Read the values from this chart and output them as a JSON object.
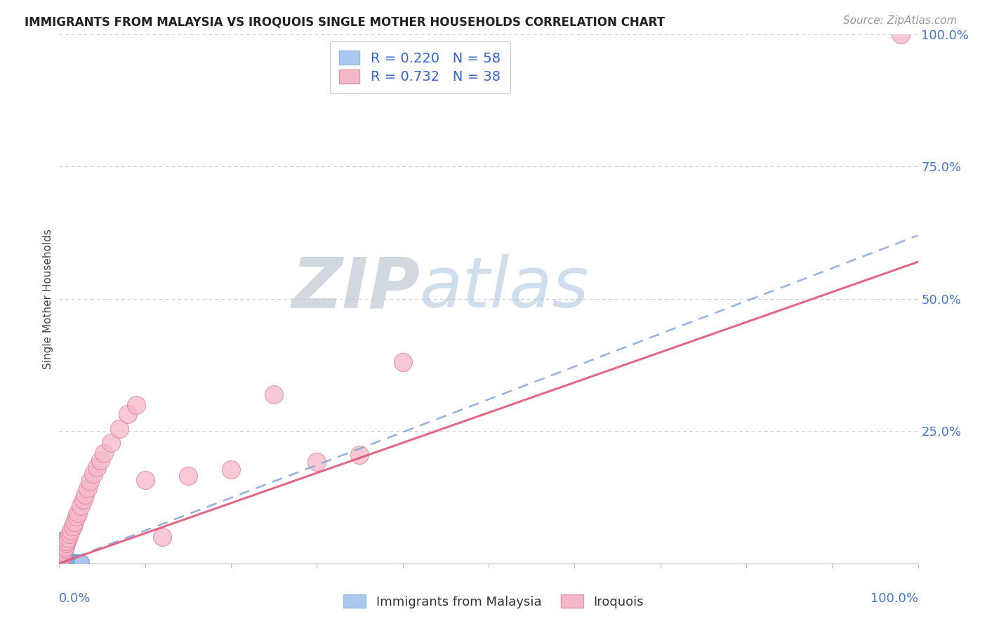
{
  "title": "IMMIGRANTS FROM MALAYSIA VS IROQUOIS SINGLE MOTHER HOUSEHOLDS CORRELATION CHART",
  "source": "Source: ZipAtlas.com",
  "ylabel": "Single Mother Households",
  "xlim": [
    0,
    1.0
  ],
  "ylim": [
    0,
    1.0
  ],
  "yticks": [
    0.25,
    0.5,
    0.75,
    1.0
  ],
  "ytick_labels": [
    "25.0%",
    "50.0%",
    "75.0%",
    "100.0%"
  ],
  "legend1_label": "R = 0.220   N = 58",
  "legend2_label": "R = 0.732   N = 38",
  "series1_color": "#a8c8f0",
  "series1_edge": "#6699cc",
  "series2_color": "#f5b8c8",
  "series2_edge": "#e08098",
  "line1_color": "#88aadd",
  "line2_color": "#e05878",
  "watermark_zip": "ZIP",
  "watermark_atlas": "atlas",
  "watermark_color_zip": "#c8d0dc",
  "watermark_color_atlas": "#b8cce0",
  "title_fontsize": 12,
  "source_fontsize": 11,
  "tick_label_color": "#4477cc",
  "legend_r_color": "#3366cc",
  "background_color": "#ffffff",
  "malaysia_x": [
    0.001,
    0.001,
    0.001,
    0.001,
    0.001,
    0.002,
    0.002,
    0.002,
    0.002,
    0.002,
    0.002,
    0.002,
    0.002,
    0.003,
    0.003,
    0.003,
    0.003,
    0.003,
    0.003,
    0.003,
    0.003,
    0.004,
    0.004,
    0.004,
    0.004,
    0.004,
    0.004,
    0.005,
    0.005,
    0.005,
    0.005,
    0.006,
    0.006,
    0.006,
    0.007,
    0.007,
    0.008,
    0.008,
    0.009,
    0.01,
    0.01,
    0.011,
    0.012,
    0.013,
    0.014,
    0.015,
    0.015,
    0.016,
    0.017,
    0.018,
    0.019,
    0.02,
    0.021,
    0.022,
    0.023,
    0.024,
    0.025,
    0.026
  ],
  "malaysia_y": [
    0.02,
    0.025,
    0.03,
    0.035,
    0.04,
    0.01,
    0.015,
    0.02,
    0.025,
    0.03,
    0.035,
    0.04,
    0.045,
    0.008,
    0.012,
    0.018,
    0.022,
    0.028,
    0.033,
    0.038,
    0.043,
    0.006,
    0.01,
    0.015,
    0.02,
    0.025,
    0.03,
    0.005,
    0.01,
    0.015,
    0.02,
    0.004,
    0.008,
    0.012,
    0.004,
    0.008,
    0.003,
    0.007,
    0.003,
    0.003,
    0.006,
    0.003,
    0.003,
    0.003,
    0.003,
    0.003,
    0.004,
    0.003,
    0.003,
    0.003,
    0.003,
    0.003,
    0.003,
    0.003,
    0.003,
    0.003,
    0.003,
    0.003
  ],
  "iroquois_x": [
    0.001,
    0.002,
    0.003,
    0.004,
    0.005,
    0.006,
    0.007,
    0.008,
    0.009,
    0.01,
    0.012,
    0.014,
    0.016,
    0.018,
    0.02,
    0.022,
    0.025,
    0.028,
    0.03,
    0.033,
    0.036,
    0.04,
    0.044,
    0.048,
    0.052,
    0.06,
    0.07,
    0.08,
    0.09,
    0.1,
    0.12,
    0.15,
    0.2,
    0.25,
    0.3,
    0.35,
    0.4,
    0.98
  ],
  "iroquois_y": [
    0.005,
    0.01,
    0.015,
    0.018,
    0.022,
    0.028,
    0.032,
    0.038,
    0.042,
    0.048,
    0.055,
    0.062,
    0.07,
    0.078,
    0.088,
    0.095,
    0.108,
    0.12,
    0.13,
    0.142,
    0.155,
    0.17,
    0.182,
    0.195,
    0.208,
    0.228,
    0.255,
    0.282,
    0.3,
    0.158,
    0.05,
    0.165,
    0.178,
    0.32,
    0.192,
    0.205,
    0.38,
    1.0
  ],
  "line1_x": [
    0.0,
    1.0
  ],
  "line1_y": [
    0.0,
    0.62
  ],
  "line2_x": [
    0.0,
    1.0
  ],
  "line2_y": [
    0.0,
    0.57
  ]
}
